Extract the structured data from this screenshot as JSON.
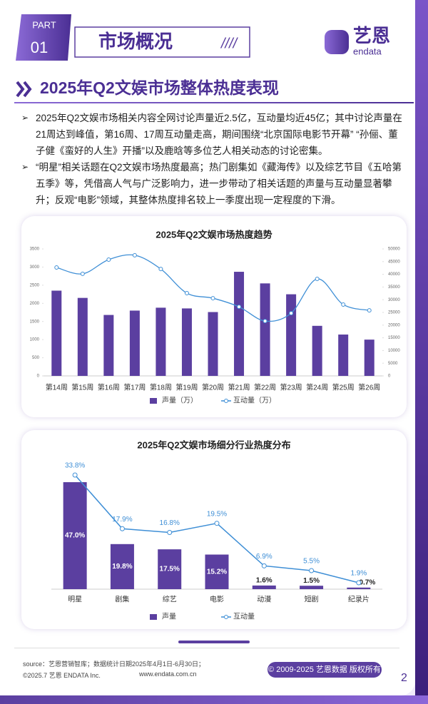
{
  "header": {
    "part": "PART",
    "part_number": "01",
    "title": "市场概况",
    "logo_cn": "艺恩",
    "logo_en": "endata"
  },
  "section_title": "2025年Q2文娱市场整体热度表现",
  "bullets": [
    "2025年Q2文娱市场相关内容全网讨论声量近2.5亿，互动量均近45亿；其中讨论声量在21周达到峰值，第16周、17周互动量走高，期间围绕“北京国际电影节开幕” “孙俪、董子健《蛮好的人生》开播”以及鹿晗等多位艺人相关动态的讨论密集。",
    "“明星”相关话题在Q2文娱市场热度最高；热门剧集如《藏海传》以及综艺节目《五哈第五季》等，凭借高人气与广泛影响力，进一步带动了相关话题的声量与互动量显著攀升；反观“电影”领域，其整体热度排名较上一季度出现一定程度的下滑。"
  ],
  "chart_data": [
    {
      "type": "bar",
      "title": "2025年Q2文娱市场热度趋势",
      "categories": [
        "第14周",
        "第15周",
        "第16周",
        "第17周",
        "第18周",
        "第19周",
        "第20周",
        "第21周",
        "第22周",
        "第23周",
        "第24周",
        "第25周",
        "第26周"
      ],
      "series": [
        {
          "name": "声量（万）",
          "type": "bar",
          "color": "#5b3fa0",
          "values": [
            2350,
            2150,
            1680,
            1800,
            1880,
            1860,
            1760,
            2870,
            2550,
            2250,
            1380,
            1140,
            1000
          ]
        },
        {
          "name": "互动量（万）",
          "type": "line",
          "color": "#3f8fd6",
          "axis": "y2",
          "values": [
            42700,
            40200,
            45800,
            47500,
            42100,
            32600,
            30600,
            27200,
            21600,
            24700,
            38200,
            28100,
            25800
          ]
        }
      ],
      "ylim": [
        0,
        3500
      ],
      "yticks": [
        0,
        500,
        1000,
        1500,
        2000,
        2500,
        3000,
        3500
      ],
      "y2lim": [
        0,
        50000
      ],
      "y2ticks": [
        0,
        5000,
        10000,
        15000,
        20000,
        25000,
        30000,
        35000,
        40000,
        45000,
        50000
      ],
      "legend": "bottom"
    },
    {
      "type": "bar",
      "title": "2025年Q2文娱市场细分行业热度分布",
      "categories": [
        "明星",
        "剧集",
        "综艺",
        "电影",
        "动漫",
        "短剧",
        "纪录片"
      ],
      "series": [
        {
          "name": "声量",
          "type": "bar",
          "color": "#5b3fa0",
          "values": [
            47.0,
            19.8,
            17.5,
            15.2,
            1.6,
            1.5,
            0.7
          ],
          "value_labels": [
            "47.0%",
            "19.8%",
            "17.5%",
            "15.2%",
            "1.6%",
            "1.5%",
            "0.7%"
          ]
        },
        {
          "name": "互动量",
          "type": "line",
          "color": "#3f8fd6",
          "values": [
            33.8,
            17.9,
            16.8,
            19.5,
            6.9,
            5.5,
            1.9
          ],
          "value_labels": [
            "33.8%",
            "17.9%",
            "16.8%",
            "19.5%",
            "6.9%",
            "5.5%",
            "1.9%"
          ]
        }
      ],
      "legend": "bottom"
    }
  ],
  "footer": {
    "source": "source：艺恩营销智库；数据统计日期2025年4月1日-6月30日；",
    "copyright_line": "©2025.7 艺恩 ENDATA Inc.",
    "website": "www.endata.com.cn",
    "rights": "© 2009-2025 艺恩数据 版权所有",
    "page_number": 2
  }
}
